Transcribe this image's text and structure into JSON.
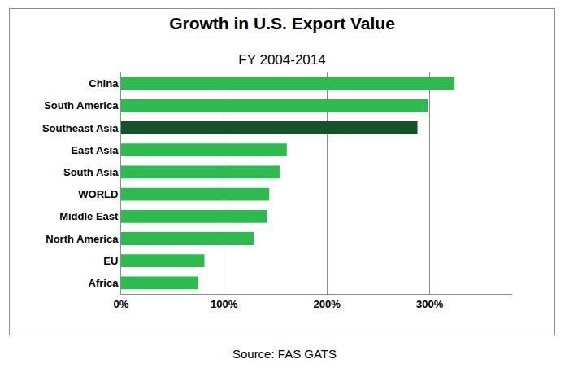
{
  "chart_data": {
    "type": "bar",
    "orientation": "horizontal",
    "title": "Growth in U.S. Export Value",
    "subtitle": "FY 2004-2014",
    "annotations": [
      "Source: FAS GATS"
    ],
    "categories": [
      "China",
      "South America",
      "Southeast Asia",
      "East Asia",
      "South Asia",
      "WORLD",
      "Middle East",
      "North America",
      "EU",
      "Africa"
    ],
    "values": [
      324,
      298,
      288,
      161,
      154,
      144,
      142,
      129,
      81,
      75
    ],
    "colors": [
      "#2dbb4f",
      "#2dbb4f",
      "#14532a",
      "#2dbb4f",
      "#2dbb4f",
      "#2dbb4f",
      "#2dbb4f",
      "#2dbb4f",
      "#2dbb4f",
      "#2dbb4f"
    ],
    "xlim": [
      0,
      380
    ],
    "xticks": [
      {
        "value": 0,
        "label": "0%"
      },
      {
        "value": 100,
        "label": "100%"
      },
      {
        "value": 200,
        "label": "200%"
      },
      {
        "value": 300,
        "label": "300%"
      }
    ],
    "grid": true
  }
}
